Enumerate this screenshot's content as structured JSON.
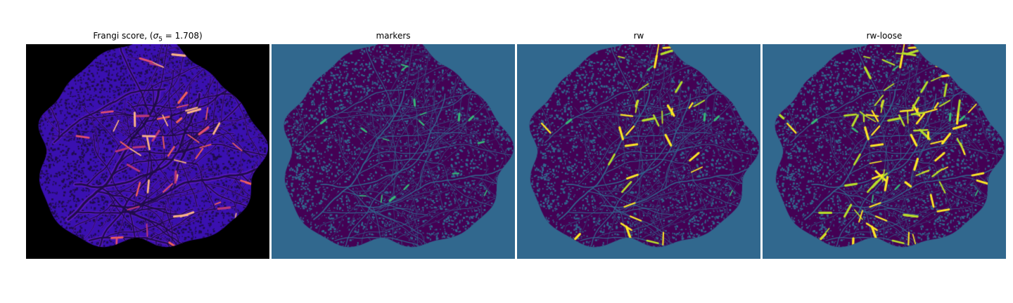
{
  "figure": {
    "panels": [
      {
        "id": "frangi",
        "title_prefix": "Frangi score, (",
        "title_math": "σ",
        "title_sub": "5",
        "title_suffix": " = 1.708)",
        "colormap": "magma",
        "background": "#000000"
      },
      {
        "id": "markers",
        "title": "markers",
        "colormap": "viridis",
        "background": "#31688e"
      },
      {
        "id": "rw",
        "title": "rw",
        "colormap": "viridis",
        "background": "#31688e"
      },
      {
        "id": "rw-loose",
        "title": "rw-loose",
        "colormap": "viridis",
        "background": "#31688e"
      }
    ],
    "colors": {
      "viridis_dark": "#440154",
      "viridis_mid": "#31688e",
      "viridis_teal": "#35b779",
      "viridis_yellow": "#fde725",
      "magma_dark": "#1f0c48",
      "magma_blue": "#3a10b0",
      "magma_pink": "#f1605d",
      "magma_peach": "#fcb387"
    }
  }
}
